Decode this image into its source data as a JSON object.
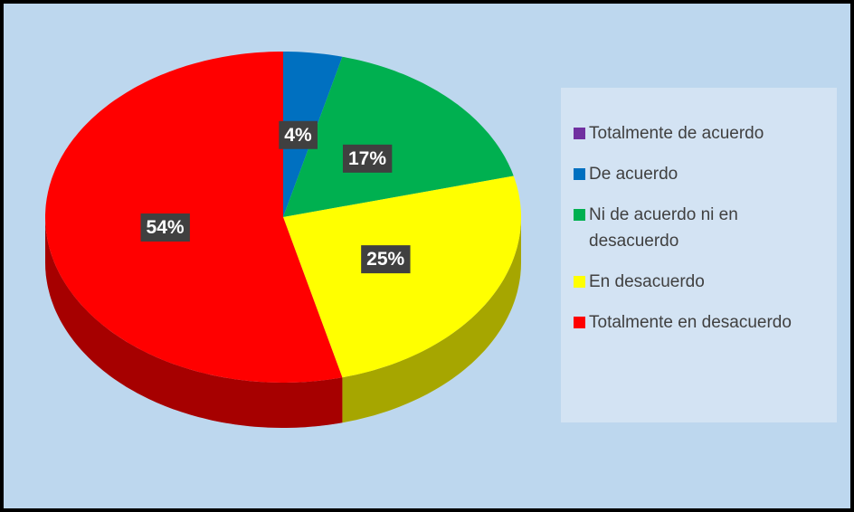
{
  "chart_data": {
    "type": "pie",
    "categories": [
      "Totalmente de acuerdo",
      "De acuerdo",
      "Ni de acuerdo ni en desacuerdo",
      "En desacuerdo",
      "Totalmente en desacuerdo"
    ],
    "values": [
      0,
      4,
      17,
      25,
      54
    ],
    "value_labels": [
      null,
      "4%",
      "17%",
      "25%",
      "54%"
    ],
    "colors": [
      "#7030a0",
      "#0070c0",
      "#00b050",
      "#ffff00",
      "#ff0000"
    ],
    "legend": "right"
  }
}
